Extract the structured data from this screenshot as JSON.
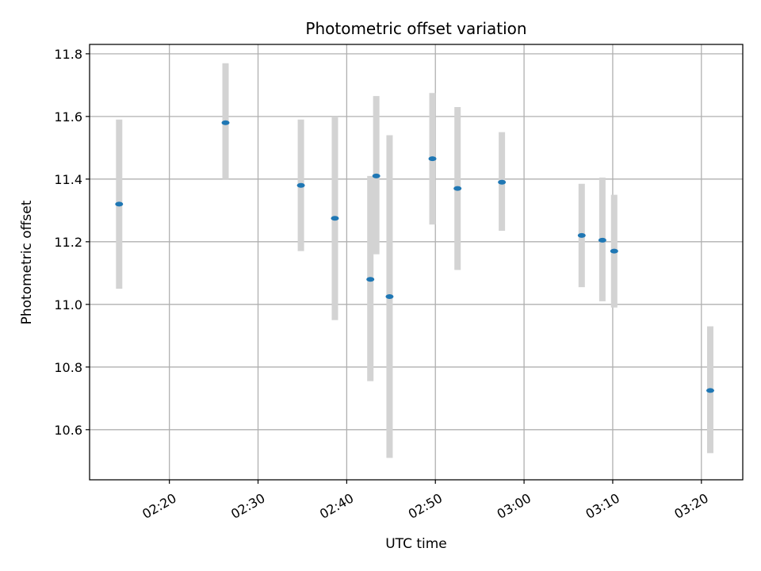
{
  "chart_data": {
    "type": "scatter",
    "title": "Photometric offset variation",
    "xlabel": "UTC time",
    "ylabel": "Photometric offset",
    "x_ticks": [
      "02:20",
      "02:30",
      "02:40",
      "02:50",
      "03:00",
      "03:10",
      "03:20"
    ],
    "y_ticks": [
      "10.6",
      "10.8",
      "11.0",
      "11.2",
      "11.4",
      "11.6",
      "11.8"
    ],
    "xlim": [
      "02:11:00",
      "03:24:40"
    ],
    "ylim": [
      10.44,
      11.83
    ],
    "grid": true,
    "colors": {
      "point": "#1f77b4",
      "errorbar": "#d3d3d3",
      "grid": "#b0b0b0"
    },
    "points": [
      {
        "x": "02:14:20",
        "y": 11.32,
        "ylow": 11.05,
        "yhigh": 11.59
      },
      {
        "x": "02:26:20",
        "y": 11.58,
        "ylow": 11.4,
        "yhigh": 11.77
      },
      {
        "x": "02:34:50",
        "y": 11.38,
        "ylow": 11.17,
        "yhigh": 11.59
      },
      {
        "x": "02:38:40",
        "y": 11.275,
        "ylow": 10.95,
        "yhigh": 11.6
      },
      {
        "x": "02:42:40",
        "y": 11.08,
        "ylow": 10.755,
        "yhigh": 11.41
      },
      {
        "x": "02:43:20",
        "y": 11.41,
        "ylow": 11.16,
        "yhigh": 11.665
      },
      {
        "x": "02:44:50",
        "y": 11.025,
        "ylow": 10.51,
        "yhigh": 11.54
      },
      {
        "x": "02:49:40",
        "y": 11.465,
        "ylow": 11.255,
        "yhigh": 11.675
      },
      {
        "x": "02:52:30",
        "y": 11.37,
        "ylow": 11.11,
        "yhigh": 11.63
      },
      {
        "x": "02:57:30",
        "y": 11.39,
        "ylow": 11.235,
        "yhigh": 11.55
      },
      {
        "x": "03:06:30",
        "y": 11.22,
        "ylow": 11.055,
        "yhigh": 11.385
      },
      {
        "x": "03:08:50",
        "y": 11.205,
        "ylow": 11.01,
        "yhigh": 11.405
      },
      {
        "x": "03:10:10",
        "y": 11.17,
        "ylow": 10.99,
        "yhigh": 11.35
      },
      {
        "x": "03:21:00",
        "y": 10.725,
        "ylow": 10.525,
        "yhigh": 10.93
      }
    ]
  }
}
